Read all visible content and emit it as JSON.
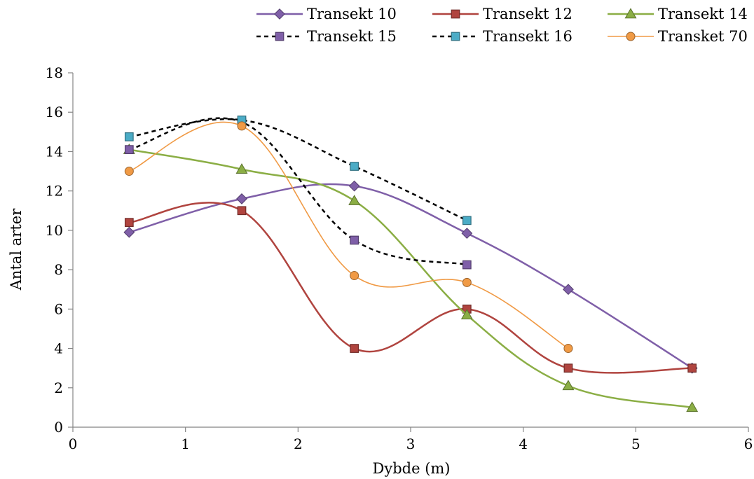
{
  "chart_data": {
    "type": "line",
    "title": "",
    "xlabel": "Dybde (m)",
    "ylabel": "Antal arter",
    "xlim": [
      0,
      6
    ],
    "ylim": [
      0,
      18
    ],
    "xticks": [
      0,
      1,
      2,
      3,
      4,
      5,
      6
    ],
    "yticks": [
      0,
      2,
      4,
      6,
      8,
      10,
      12,
      14,
      16,
      18
    ],
    "grid": false,
    "legend_position": "top-right",
    "series": [
      {
        "name": "Transekt 10",
        "color": "#7F5FA8",
        "marker": "diamond",
        "dash": "solid",
        "width": 2.5,
        "points": [
          [
            0.5,
            9.9
          ],
          [
            1.5,
            11.6
          ],
          [
            2.5,
            12.25
          ],
          [
            3.5,
            9.85
          ],
          [
            4.4,
            7.0
          ],
          [
            5.5,
            3.0
          ]
        ]
      },
      {
        "name": "Transekt 12",
        "color": "#B0443F",
        "marker": "square",
        "dash": "solid",
        "width": 2.5,
        "points": [
          [
            0.5,
            10.4
          ],
          [
            1.5,
            11.0
          ],
          [
            2.5,
            4.0
          ],
          [
            3.5,
            6.0
          ],
          [
            4.4,
            3.0
          ],
          [
            5.5,
            3.0
          ]
        ]
      },
      {
        "name": "Transekt 14",
        "color": "#8BAE45",
        "marker": "triangle",
        "dash": "solid",
        "width": 2.5,
        "points": [
          [
            0.5,
            14.1
          ],
          [
            1.5,
            13.1
          ],
          [
            2.5,
            11.5
          ],
          [
            3.5,
            5.7
          ],
          [
            4.4,
            2.1
          ],
          [
            5.5,
            1.0
          ]
        ]
      },
      {
        "name": "Transekt 15",
        "color": "#000000",
        "marker_color": "#7F5FA8",
        "marker": "square",
        "dash": "dashed",
        "width": 2.5,
        "points": [
          [
            0.5,
            14.1
          ],
          [
            1.5,
            15.5
          ],
          [
            2.5,
            9.5
          ],
          [
            3.5,
            8.25
          ]
        ]
      },
      {
        "name": "Transekt 16",
        "color": "#000000",
        "marker_color": "#4BACC6",
        "marker": "square",
        "dash": "dashed",
        "width": 2.5,
        "points": [
          [
            0.5,
            14.75
          ],
          [
            1.5,
            15.6
          ],
          [
            2.5,
            13.25
          ],
          [
            3.5,
            10.5
          ]
        ]
      },
      {
        "name": "Transket 70",
        "color": "#F09A45",
        "marker": "circle",
        "dash": "solid",
        "width": 1.6,
        "points": [
          [
            0.5,
            13.0
          ],
          [
            1.5,
            15.3
          ],
          [
            2.5,
            7.7
          ],
          [
            3.5,
            7.35
          ],
          [
            4.4,
            4.0
          ]
        ]
      }
    ]
  }
}
